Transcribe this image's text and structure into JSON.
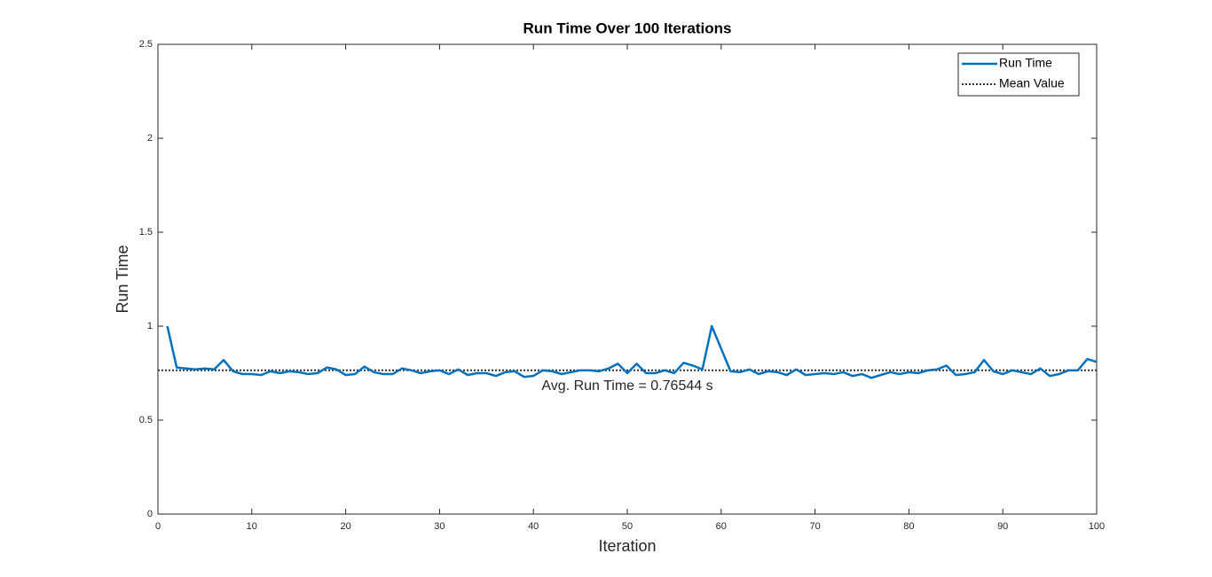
{
  "chart_data": {
    "type": "line",
    "title": "Run Time Over 100 Iterations",
    "x_label": "Iteration",
    "y_label": "Run Time",
    "x": [
      1,
      2,
      3,
      4,
      5,
      6,
      7,
      8,
      9,
      10,
      11,
      12,
      13,
      14,
      15,
      16,
      17,
      18,
      19,
      20,
      21,
      22,
      23,
      24,
      25,
      26,
      27,
      28,
      29,
      30,
      31,
      32,
      33,
      34,
      35,
      36,
      37,
      38,
      39,
      40,
      41,
      42,
      43,
      44,
      45,
      46,
      47,
      48,
      49,
      50,
      51,
      52,
      53,
      54,
      55,
      56,
      57,
      58,
      59,
      60,
      61,
      62,
      63,
      64,
      65,
      66,
      67,
      68,
      69,
      70,
      71,
      72,
      73,
      74,
      75,
      76,
      77,
      78,
      79,
      80,
      81,
      82,
      83,
      84,
      85,
      86,
      87,
      88,
      89,
      90,
      91,
      92,
      93,
      94,
      95,
      96,
      97,
      98,
      99,
      100
    ],
    "series": [
      {
        "name": "Run Time",
        "color": "#0072bd",
        "values": [
          1.0,
          0.78,
          0.775,
          0.77,
          0.775,
          0.77,
          0.82,
          0.76,
          0.745,
          0.745,
          0.74,
          0.76,
          0.75,
          0.76,
          0.755,
          0.745,
          0.75,
          0.78,
          0.77,
          0.74,
          0.745,
          0.785,
          0.755,
          0.745,
          0.745,
          0.775,
          0.765,
          0.75,
          0.76,
          0.765,
          0.745,
          0.77,
          0.74,
          0.75,
          0.75,
          0.735,
          0.755,
          0.76,
          0.73,
          0.735,
          0.765,
          0.76,
          0.745,
          0.755,
          0.765,
          0.765,
          0.76,
          0.775,
          0.8,
          0.75,
          0.8,
          0.75,
          0.75,
          0.765,
          0.75,
          0.805,
          0.79,
          0.77,
          1.0,
          0.88,
          0.76,
          0.755,
          0.77,
          0.745,
          0.76,
          0.755,
          0.74,
          0.77,
          0.74,
          0.745,
          0.75,
          0.745,
          0.755,
          0.735,
          0.745,
          0.725,
          0.74,
          0.755,
          0.745,
          0.755,
          0.75,
          0.765,
          0.77,
          0.79,
          0.74,
          0.745,
          0.755,
          0.82,
          0.76,
          0.745,
          0.765,
          0.755,
          0.745,
          0.775,
          0.735,
          0.745,
          0.765,
          0.765,
          0.825,
          0.81
        ]
      }
    ],
    "mean_line": {
      "name": "Mean Value",
      "value": 0.76544,
      "color": "#333333",
      "style": "dotted"
    },
    "annotation": "Avg. Run Time = 0.76544 s",
    "xlim": [
      0,
      100
    ],
    "xticks": [
      0,
      10,
      20,
      30,
      40,
      50,
      60,
      70,
      80,
      90,
      100
    ],
    "ylim": [
      0,
      2.5
    ],
    "yticks": [
      0,
      0.5,
      1,
      1.5,
      2,
      2.5
    ],
    "grid": false,
    "legend": "northeast"
  }
}
